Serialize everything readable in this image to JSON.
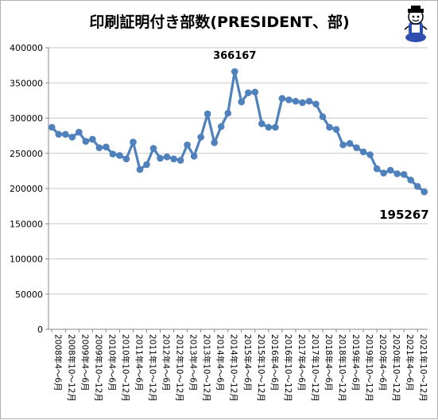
{
  "chart_data": {
    "type": "line",
    "title": "印刷証明付き部数(PRESIDENT、部)",
    "xlabel": "",
    "ylabel": "",
    "ylim": [
      0,
      400000
    ],
    "yticks": [
      "0",
      "50000",
      "100000",
      "150000",
      "200000",
      "250000",
      "300000",
      "350000",
      "400000"
    ],
    "grid": true,
    "legend": "none",
    "line_color": "#4f81bd",
    "tick_labels": [
      "2008年4～6月",
      "2008年10～12月",
      "2009年4～6月",
      "2009年10～12月",
      "2010年4～6月",
      "2010年10～12月",
      "2011年4～6月",
      "2011年10～12月",
      "2012年4～6月",
      "2012年10～12月",
      "2013年4～6月",
      "2013年10～12月",
      "2014年4～6月",
      "2014年10～12月",
      "2015年4～6月",
      "2015年10～12月",
      "2016年4～6月",
      "2016年10～12月",
      "2017年4～6月",
      "2017年10～12月",
      "2018年4～6月",
      "2018年10～12月",
      "2019年4～6月",
      "2019年10～12月",
      "2020年4～6月",
      "2020年10～12月",
      "2021年4～6月",
      "2021年10～12月"
    ],
    "values": [
      287000,
      277000,
      277000,
      273000,
      280000,
      267000,
      270000,
      258000,
      259000,
      249000,
      247000,
      242000,
      266000,
      227000,
      234000,
      257000,
      243000,
      245000,
      242000,
      240000,
      262000,
      246000,
      273000,
      306000,
      265000,
      288000,
      307000,
      366167,
      323000,
      336000,
      337000,
      292000,
      287000,
      287000,
      328000,
      326000,
      324000,
      322000,
      324000,
      320000,
      302000,
      287000,
      284000,
      262000,
      264000,
      258000,
      252000,
      248000,
      228000,
      222000,
      226000,
      221000,
      220000,
      212000,
      203000,
      195267
    ],
    "annotations": [
      {
        "index": 27,
        "text": "366167"
      },
      {
        "index": 55,
        "text": "195267"
      }
    ]
  }
}
